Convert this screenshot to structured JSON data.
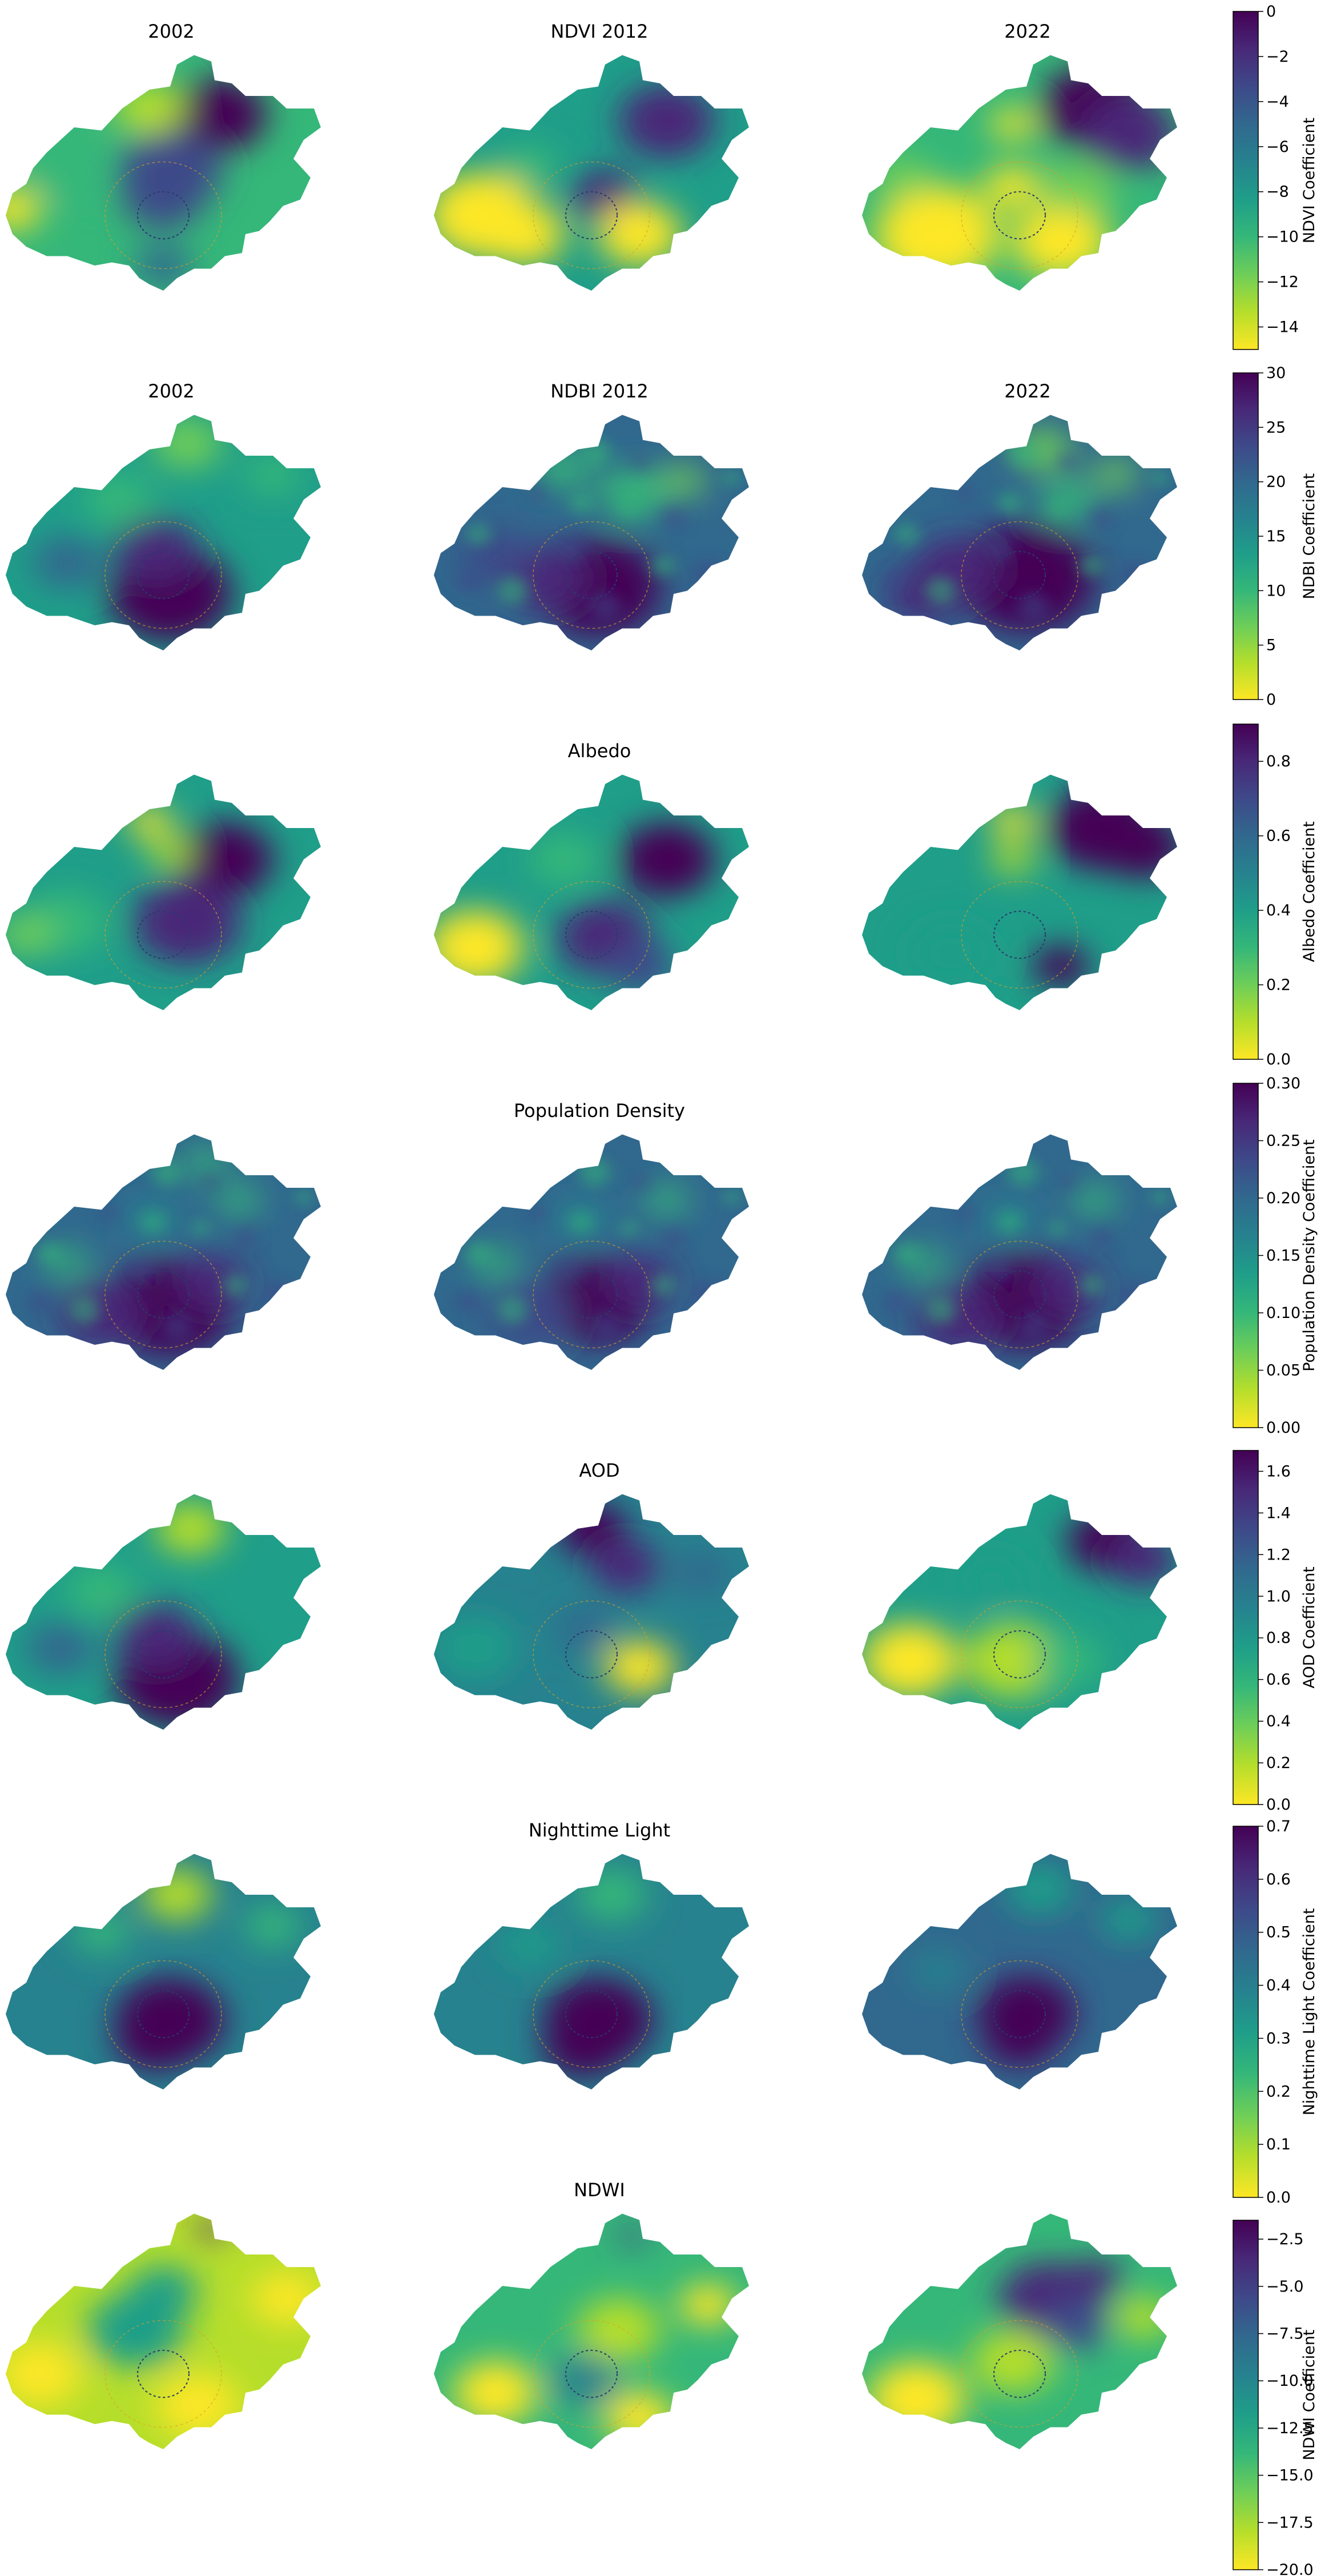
{
  "chart_data": {
    "type": "heatmap",
    "colormap": "viridis (reversed: yellow = low, purple = high)",
    "columns": [
      "2002",
      "2012",
      "2022"
    ],
    "rows": [
      {
        "id": "ndvi",
        "titles": [
          "2002",
          "NDVI 2012",
          "2022"
        ],
        "colorbar_label": "NDVI Coefficient",
        "range": [
          -15,
          0
        ],
        "ticks": [
          0,
          -2,
          -4,
          -6,
          -8,
          -10,
          -12,
          -14
        ],
        "tick_labels": [
          "0",
          "−2",
          "−4",
          "−6",
          "−8",
          "−10",
          "−12",
          "−14"
        ]
      },
      {
        "id": "ndbi",
        "titles": [
          "2002",
          "NDBI 2012",
          "2022"
        ],
        "colorbar_label": "NDBI Coefficient",
        "range": [
          0,
          30
        ],
        "ticks": [
          30,
          25,
          20,
          15,
          10,
          5,
          0
        ],
        "tick_labels": [
          "30",
          "25",
          "20",
          "15",
          "10",
          "5",
          "0"
        ]
      },
      {
        "id": "albedo",
        "titles": [
          "",
          "Albedo",
          ""
        ],
        "colorbar_label": "Albedo Coefficient",
        "range": [
          0,
          0.9
        ],
        "ticks": [
          0.8,
          0.6,
          0.4,
          0.2,
          0.0
        ],
        "tick_labels": [
          "0.8",
          "0.6",
          "0.4",
          "0.2",
          "0.0"
        ]
      },
      {
        "id": "popdens",
        "titles": [
          "",
          "Population Density",
          ""
        ],
        "colorbar_label": "Population Density Coefficient",
        "range": [
          0,
          0.3
        ],
        "ticks": [
          0.3,
          0.25,
          0.2,
          0.15,
          0.1,
          0.05,
          0.0
        ],
        "tick_labels": [
          "0.30",
          "0.25",
          "0.20",
          "0.15",
          "0.10",
          "0.05",
          "0.00"
        ]
      },
      {
        "id": "aod",
        "titles": [
          "",
          "AOD",
          ""
        ],
        "colorbar_label": "AOD Coefficient",
        "range": [
          0,
          1.7
        ],
        "ticks": [
          1.6,
          1.4,
          1.2,
          1.0,
          0.8,
          0.6,
          0.4,
          0.2,
          0.0
        ],
        "tick_labels": [
          "1.6",
          "1.4",
          "1.2",
          "1.0",
          "0.8",
          "0.6",
          "0.4",
          "0.2",
          "0.0"
        ]
      },
      {
        "id": "ntl",
        "titles": [
          "",
          "Nighttime Light",
          ""
        ],
        "colorbar_label": "Nighttime Light Coefficient",
        "range": [
          0,
          0.7
        ],
        "ticks": [
          0.7,
          0.6,
          0.5,
          0.4,
          0.3,
          0.2,
          0.1,
          0.0
        ],
        "tick_labels": [
          "0.7",
          "0.6",
          "0.5",
          "0.4",
          "0.3",
          "0.2",
          "0.1",
          "0.0"
        ]
      },
      {
        "id": "ndwi",
        "titles": [
          "",
          "NDWI",
          ""
        ],
        "colorbar_label": "NDWI Coefficient",
        "range": [
          -20,
          -1.5
        ],
        "ticks": [
          -2.5,
          -5,
          -7.5,
          -10,
          -12.5,
          -15,
          -17.5,
          -20
        ],
        "tick_labels": [
          "−2.5",
          "−5.0",
          "−7.5",
          "−10.0",
          "−12.5",
          "−15.0",
          "−17.5",
          "−20.0"
        ]
      }
    ],
    "panel_fields": [
      [
        "ndvi-2002",
        "ndvi-2012",
        "ndvi-2022"
      ],
      [
        "ndbi-2002",
        "ndbi-2012",
        "ndbi-2022"
      ],
      [
        "albedo-2002",
        "albedo-2012",
        "albedo-2022"
      ],
      [
        "popdens-2002",
        "popdens-2012",
        "popdens-2022"
      ],
      [
        "aod-2002",
        "aod-2012",
        "aod-2022"
      ],
      [
        "ntl-2002",
        "ntl-2012",
        "ntl-2022"
      ],
      [
        "ndwi-2002",
        "ndwi-2012",
        "ndwi-2022"
      ]
    ],
    "overlay": "dashed concentric circles marking urban ring roads",
    "grid": false,
    "legend": "colorbar-right-of-each-row"
  }
}
